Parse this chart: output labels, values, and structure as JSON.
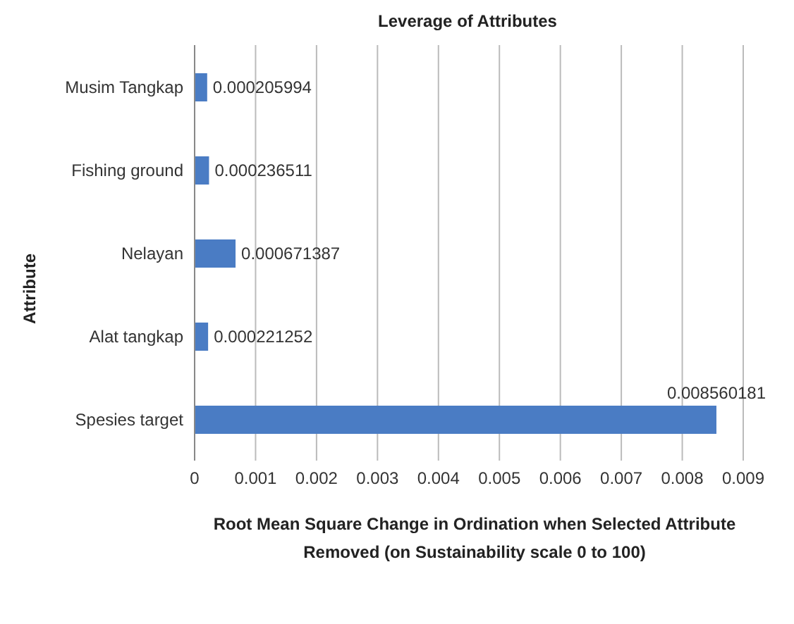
{
  "chart_data": {
    "type": "bar",
    "orientation": "horizontal",
    "title": "Leverage of Attributes",
    "xlabel": "Root Mean Square Change in Ordination when Selected Attribute Removed (on Sustainability scale 0 to 100)",
    "ylabel": "Attribute",
    "categories": [
      "Musim Tangkap",
      "Fishing ground",
      "Nelayan",
      "Alat tangkap",
      "Spesies target"
    ],
    "values": [
      0.000205994,
      0.000236511,
      0.000671387,
      0.000221252,
      0.008560181
    ],
    "color": "#4a7cc4",
    "xlim": [
      0,
      0.009
    ],
    "xticks": [
      0,
      0.001,
      0.002,
      0.003,
      0.004,
      0.005,
      0.006,
      0.007,
      0.008,
      0.009
    ],
    "grid": "x",
    "data_labels": true,
    "legend": false
  }
}
